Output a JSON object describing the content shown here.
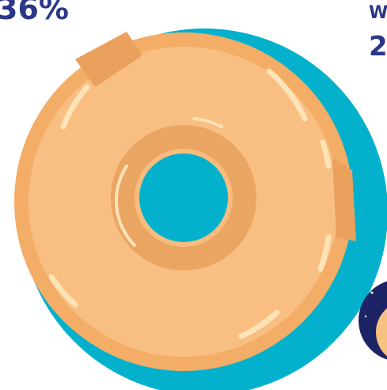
{
  "stat": {
    "value": "36%"
  },
  "side": {
    "label": "W",
    "value": "2"
  }
}
